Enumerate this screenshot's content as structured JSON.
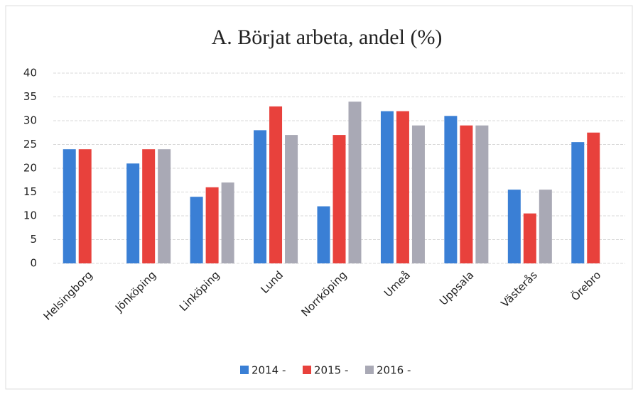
{
  "chart_data": {
    "type": "bar",
    "title": "A. Börjat arbeta, andel (%)",
    "categories": [
      "Helsingborg",
      "Jönköping",
      "Linköping",
      "Lund",
      "Norrköping",
      "Umeå",
      "Uppsala",
      "Västerås",
      "Örebro"
    ],
    "series": [
      {
        "name": "2014 -",
        "color": "#3a7fd5",
        "values": [
          24,
          21,
          14,
          28,
          12,
          32,
          31,
          15.5,
          25.5
        ]
      },
      {
        "name": "2015 -",
        "color": "#e8413c",
        "values": [
          24,
          24,
          16,
          33,
          27,
          32,
          29,
          10.5,
          27.5
        ]
      },
      {
        "name": "2016 -",
        "color": "#a9a9b5",
        "values": [
          null,
          24,
          17,
          27,
          34,
          29,
          29,
          15.5,
          null
        ]
      }
    ],
    "ylim": [
      0,
      40
    ],
    "yticks": [
      0,
      5,
      10,
      15,
      20,
      25,
      30,
      35,
      40
    ],
    "grid": true,
    "legend": "bottom"
  }
}
